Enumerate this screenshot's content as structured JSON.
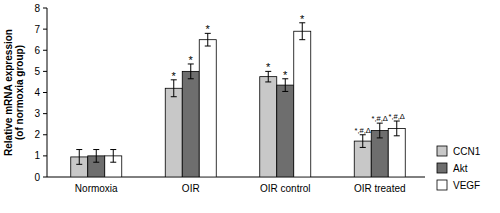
{
  "chart_data": {
    "type": "bar",
    "categories": [
      "Normoxia",
      "OIR",
      "OIR control",
      "OIR treated"
    ],
    "ylabel": [
      "Relative mRNA expression",
      "(of normoxia group)"
    ],
    "ylim": [
      0,
      8
    ],
    "yticks": [
      0,
      1,
      2,
      3,
      4,
      5,
      6,
      7,
      8
    ],
    "grid": false,
    "legend": "right",
    "series": [
      {
        "name": "CCN1",
        "color": "#c8c8c8",
        "values": [
          0.95,
          4.2,
          4.75,
          1.7
        ],
        "errors": [
          0.35,
          0.4,
          0.25,
          0.3
        ],
        "annotations": [
          null,
          "*",
          "*",
          "*,#,Δ"
        ]
      },
      {
        "name": "Akt",
        "color": "#6e6e6e",
        "values": [
          1.0,
          5.0,
          4.35,
          2.2
        ],
        "errors": [
          0.3,
          0.35,
          0.3,
          0.35
        ],
        "annotations": [
          null,
          "*",
          "*",
          "*,#,Δ"
        ]
      },
      {
        "name": "VEGF",
        "color": "#ffffff",
        "values": [
          1.0,
          6.5,
          6.9,
          2.3
        ],
        "errors": [
          0.3,
          0.3,
          0.4,
          0.35
        ],
        "annotations": [
          null,
          "*",
          "*",
          "*,#,Δ"
        ]
      }
    ]
  }
}
